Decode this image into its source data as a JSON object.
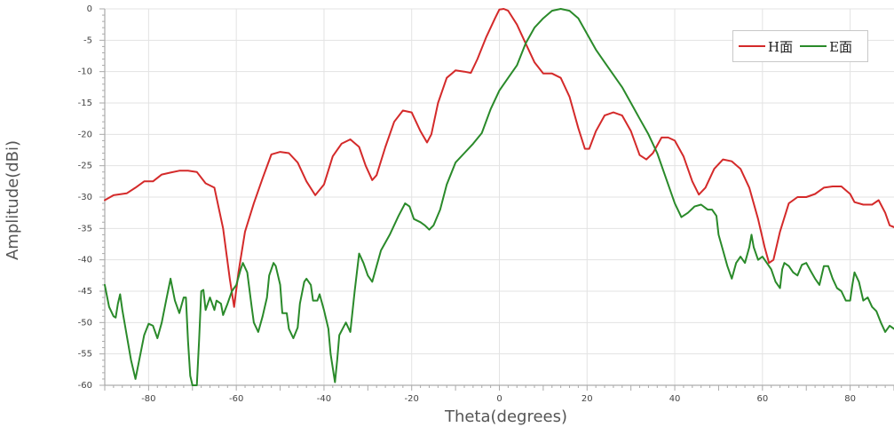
{
  "chart_data": {
    "type": "line",
    "xlabel": "Theta(degrees)",
    "ylabel": "Amplitude(dBi)",
    "xlim": [
      -90,
      90
    ],
    "ylim": [
      -60,
      0
    ],
    "xticks": [
      -80,
      -60,
      -40,
      -20,
      0,
      20,
      40,
      60,
      80
    ],
    "yticks": [
      0,
      -5,
      -10,
      -15,
      -20,
      -25,
      -30,
      -35,
      -40,
      -45,
      -50,
      -55,
      -60
    ],
    "grid": true,
    "legend_position": "top-right",
    "series": [
      {
        "name": "H面",
        "color": "#d42a2a",
        "points": [
          [
            -90,
            -30.5
          ],
          [
            -88,
            -29.7
          ],
          [
            -85,
            -29.4
          ],
          [
            -83,
            -28.5
          ],
          [
            -81,
            -27.5
          ],
          [
            -79,
            -27.5
          ],
          [
            -77,
            -26.4
          ],
          [
            -75,
            -26.1
          ],
          [
            -73,
            -25.8
          ],
          [
            -71,
            -25.8
          ],
          [
            -69,
            -26
          ],
          [
            -67,
            -27.8
          ],
          [
            -65,
            -28.5
          ],
          [
            -63,
            -35
          ],
          [
            -61.5,
            -43
          ],
          [
            -60.5,
            -47.5
          ],
          [
            -59.5,
            -42
          ],
          [
            -58,
            -35.5
          ],
          [
            -56,
            -31
          ],
          [
            -54,
            -27
          ],
          [
            -52,
            -23.2
          ],
          [
            -50,
            -22.8
          ],
          [
            -48,
            -23
          ],
          [
            -46,
            -24.5
          ],
          [
            -44,
            -27.5
          ],
          [
            -42,
            -29.7
          ],
          [
            -40,
            -28
          ],
          [
            -38,
            -23.5
          ],
          [
            -36,
            -21.5
          ],
          [
            -34,
            -20.8
          ],
          [
            -32,
            -22
          ],
          [
            -30.5,
            -25
          ],
          [
            -29,
            -27.3
          ],
          [
            -28,
            -26.5
          ],
          [
            -26,
            -22
          ],
          [
            -24,
            -18
          ],
          [
            -22,
            -16.2
          ],
          [
            -20,
            -16.5
          ],
          [
            -18,
            -19.5
          ],
          [
            -16.5,
            -21.3
          ],
          [
            -15.5,
            -20
          ],
          [
            -14,
            -15
          ],
          [
            -12,
            -11
          ],
          [
            -10,
            -9.8
          ],
          [
            -8,
            -10
          ],
          [
            -6.5,
            -10.2
          ],
          [
            -5,
            -8
          ],
          [
            -3,
            -4.5
          ],
          [
            -1,
            -1.5
          ],
          [
            0,
            -0.1
          ],
          [
            1,
            0
          ],
          [
            2,
            -0.3
          ],
          [
            4,
            -2.5
          ],
          [
            6,
            -5.5
          ],
          [
            8,
            -8.5
          ],
          [
            10,
            -10.3
          ],
          [
            12,
            -10.3
          ],
          [
            14,
            -11
          ],
          [
            16,
            -14
          ],
          [
            18,
            -19
          ],
          [
            19.5,
            -22.3
          ],
          [
            20.5,
            -22.3
          ],
          [
            22,
            -19.5
          ],
          [
            24,
            -17
          ],
          [
            26,
            -16.5
          ],
          [
            28,
            -17
          ],
          [
            30,
            -19.5
          ],
          [
            32,
            -23.3
          ],
          [
            33.5,
            -24
          ],
          [
            35,
            -23
          ],
          [
            37,
            -20.5
          ],
          [
            38.5,
            -20.5
          ],
          [
            40,
            -21
          ],
          [
            42,
            -23.5
          ],
          [
            44,
            -27.5
          ],
          [
            45.5,
            -29.6
          ],
          [
            47,
            -28.5
          ],
          [
            49,
            -25.5
          ],
          [
            51,
            -24
          ],
          [
            53,
            -24.3
          ],
          [
            55,
            -25.5
          ],
          [
            57,
            -28.5
          ],
          [
            59,
            -33.5
          ],
          [
            60.5,
            -38
          ],
          [
            61.5,
            -40.5
          ],
          [
            62.5,
            -40
          ],
          [
            64,
            -35.5
          ],
          [
            66,
            -31
          ],
          [
            68,
            -30
          ],
          [
            70,
            -30
          ],
          [
            72,
            -29.5
          ],
          [
            74,
            -28.5
          ],
          [
            76,
            -28.3
          ],
          [
            78,
            -28.3
          ],
          [
            80,
            -29.5
          ],
          [
            81,
            -30.8
          ],
          [
            83,
            -31.2
          ],
          [
            85,
            -31.2
          ],
          [
            86.5,
            -30.5
          ],
          [
            88,
            -32.5
          ],
          [
            89,
            -34.5
          ],
          [
            90,
            -34.8
          ]
        ]
      },
      {
        "name": "E面",
        "color": "#2a8a2a",
        "points": [
          [
            -90,
            -44
          ],
          [
            -89,
            -47.5
          ],
          [
            -88,
            -49
          ],
          [
            -87.5,
            -49.2
          ],
          [
            -87,
            -47
          ],
          [
            -86.5,
            -45.5
          ],
          [
            -86,
            -48
          ],
          [
            -85,
            -52
          ],
          [
            -84,
            -56
          ],
          [
            -83,
            -59
          ],
          [
            -82,
            -55.5
          ],
          [
            -81,
            -52
          ],
          [
            -80,
            -50.2
          ],
          [
            -79,
            -50.5
          ],
          [
            -78,
            -52.5
          ],
          [
            -77,
            -50
          ],
          [
            -76,
            -46.5
          ],
          [
            -75,
            -43
          ],
          [
            -74,
            -46.5
          ],
          [
            -73,
            -48.5
          ],
          [
            -72,
            -46
          ],
          [
            -71.5,
            -46
          ],
          [
            -71,
            -53
          ],
          [
            -70.5,
            -58.5
          ],
          [
            -70,
            -60
          ],
          [
            -69,
            -60
          ],
          [
            -68.5,
            -53
          ],
          [
            -68,
            -45
          ],
          [
            -67.5,
            -44.8
          ],
          [
            -67,
            -48
          ],
          [
            -66,
            -46
          ],
          [
            -65,
            -48
          ],
          [
            -64.5,
            -46.5
          ],
          [
            -63.5,
            -47
          ],
          [
            -63,
            -48.8
          ],
          [
            -62,
            -47
          ],
          [
            -61,
            -45
          ],
          [
            -60,
            -44
          ],
          [
            -59,
            -41.5
          ],
          [
            -58.5,
            -40.5
          ],
          [
            -57.5,
            -42
          ],
          [
            -56.5,
            -47.5
          ],
          [
            -56,
            -50
          ],
          [
            -55,
            -51.5
          ],
          [
            -54,
            -49
          ],
          [
            -53,
            -46
          ],
          [
            -52.5,
            -42.5
          ],
          [
            -51.5,
            -40.5
          ],
          [
            -51,
            -41
          ],
          [
            -50,
            -44
          ],
          [
            -49.5,
            -48.5
          ],
          [
            -48.5,
            -48.5
          ],
          [
            -48,
            -51
          ],
          [
            -47,
            -52.5
          ],
          [
            -46,
            -50.8
          ],
          [
            -45.5,
            -47
          ],
          [
            -44.5,
            -43.5
          ],
          [
            -44,
            -43
          ],
          [
            -43,
            -44
          ],
          [
            -42.5,
            -46.5
          ],
          [
            -41.5,
            -46.5
          ],
          [
            -41,
            -45.5
          ],
          [
            -40,
            -48
          ],
          [
            -39,
            -51
          ],
          [
            -38.5,
            -55
          ],
          [
            -37.5,
            -59.5
          ],
          [
            -37,
            -56
          ],
          [
            -36.5,
            -52
          ],
          [
            -35,
            -50
          ],
          [
            -34,
            -51.5
          ],
          [
            -33,
            -45
          ],
          [
            -32,
            -39
          ],
          [
            -31,
            -40.5
          ],
          [
            -30,
            -42.5
          ],
          [
            -29,
            -43.5
          ],
          [
            -28,
            -41
          ],
          [
            -27,
            -38.5
          ],
          [
            -25,
            -36
          ],
          [
            -23,
            -33
          ],
          [
            -21.5,
            -31
          ],
          [
            -20.5,
            -31.5
          ],
          [
            -19.5,
            -33.5
          ],
          [
            -18,
            -34
          ],
          [
            -17,
            -34.5
          ],
          [
            -16,
            -35.2
          ],
          [
            -15,
            -34.5
          ],
          [
            -13.5,
            -32
          ],
          [
            -12,
            -28
          ],
          [
            -10,
            -24.5
          ],
          [
            -8,
            -23
          ],
          [
            -6,
            -21.5
          ],
          [
            -4,
            -19.8
          ],
          [
            -2,
            -16
          ],
          [
            0,
            -13
          ],
          [
            2,
            -11
          ],
          [
            4,
            -9
          ],
          [
            6,
            -5.5
          ],
          [
            8,
            -3
          ],
          [
            10,
            -1.5
          ],
          [
            12,
            -0.3
          ],
          [
            14,
            0
          ],
          [
            16,
            -0.3
          ],
          [
            18,
            -1.5
          ],
          [
            20,
            -4
          ],
          [
            22,
            -6.5
          ],
          [
            24,
            -8.5
          ],
          [
            26,
            -10.5
          ],
          [
            28,
            -12.5
          ],
          [
            30,
            -15
          ],
          [
            32,
            -17.5
          ],
          [
            34,
            -20
          ],
          [
            36,
            -23
          ],
          [
            38,
            -27
          ],
          [
            40,
            -31
          ],
          [
            41.5,
            -33.2
          ],
          [
            43,
            -32.5
          ],
          [
            44.5,
            -31.5
          ],
          [
            46,
            -31.2
          ],
          [
            47.5,
            -32
          ],
          [
            48.5,
            -32
          ],
          [
            49.5,
            -33
          ],
          [
            50,
            -36
          ],
          [
            51,
            -38.5
          ],
          [
            52,
            -41
          ],
          [
            53,
            -43
          ],
          [
            54,
            -40.5
          ],
          [
            55,
            -39.5
          ],
          [
            56,
            -40.5
          ],
          [
            57,
            -38
          ],
          [
            57.5,
            -36
          ],
          [
            58,
            -38
          ],
          [
            59,
            -40
          ],
          [
            60,
            -39.5
          ],
          [
            61,
            -40.5
          ],
          [
            62,
            -41.5
          ],
          [
            63,
            -43.5
          ],
          [
            64,
            -44.5
          ],
          [
            64.5,
            -41.5
          ],
          [
            65,
            -40.5
          ],
          [
            66,
            -41
          ],
          [
            67,
            -42
          ],
          [
            68,
            -42.5
          ],
          [
            69,
            -40.8
          ],
          [
            70,
            -40.5
          ],
          [
            71,
            -41.8
          ],
          [
            72,
            -43
          ],
          [
            73,
            -44
          ],
          [
            74,
            -41
          ],
          [
            75,
            -41
          ],
          [
            76,
            -43
          ],
          [
            77,
            -44.5
          ],
          [
            78,
            -45
          ],
          [
            79,
            -46.5
          ],
          [
            80,
            -46.5
          ],
          [
            80.5,
            -44
          ],
          [
            81,
            -42
          ],
          [
            82,
            -43.5
          ],
          [
            83,
            -46.5
          ],
          [
            84,
            -46
          ],
          [
            85,
            -47.5
          ],
          [
            86,
            -48.2
          ],
          [
            87,
            -50
          ],
          [
            88,
            -51.5
          ],
          [
            89,
            -50.5
          ],
          [
            90,
            -51
          ]
        ]
      }
    ]
  }
}
